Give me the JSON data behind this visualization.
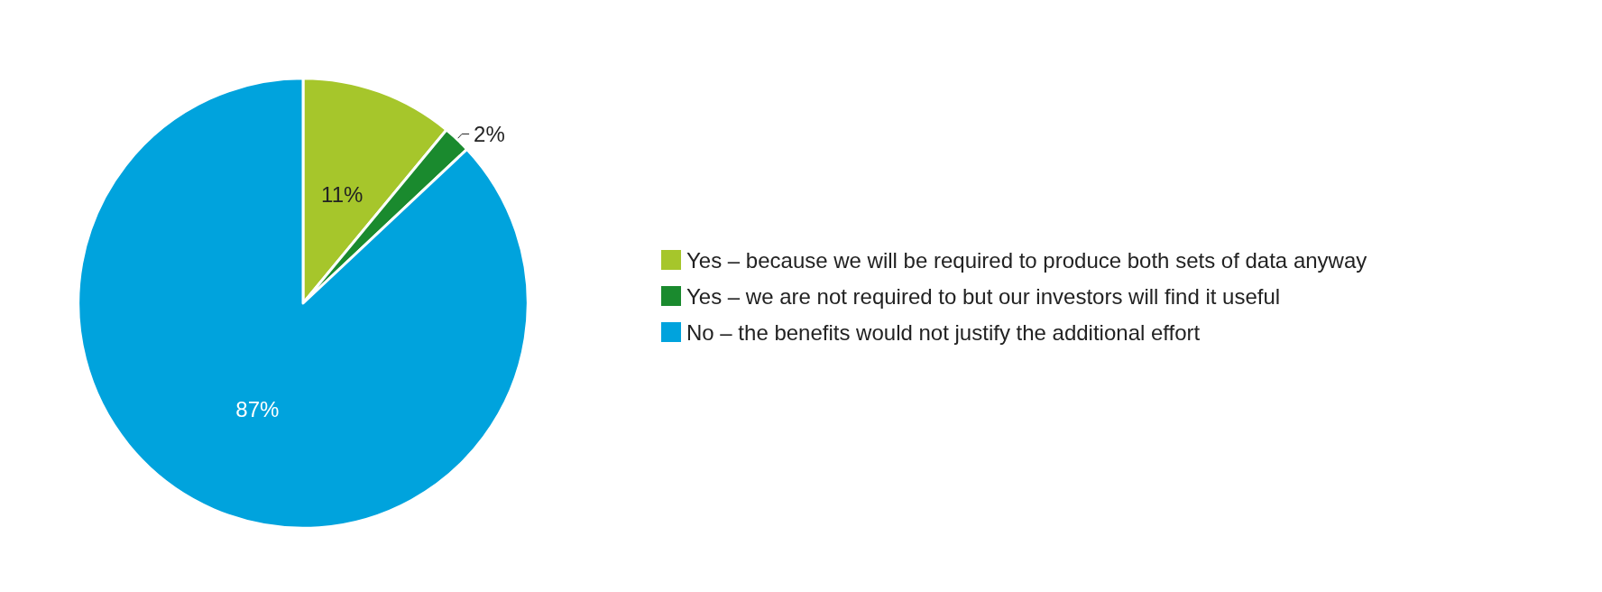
{
  "chart_data": {
    "type": "pie",
    "categories": [
      "Yes – because we will be required to produce both sets of data anyway",
      "Yes – we are not required to but our investors will find it useful",
      "No – the benefits would not justify the additional effort"
    ],
    "values": [
      11,
      2,
      87
    ],
    "colors": [
      "#a6c62b",
      "#1a8a2e",
      "#00a3dd"
    ],
    "value_labels": [
      "11%",
      "2%",
      "87%"
    ],
    "legend": "right"
  }
}
